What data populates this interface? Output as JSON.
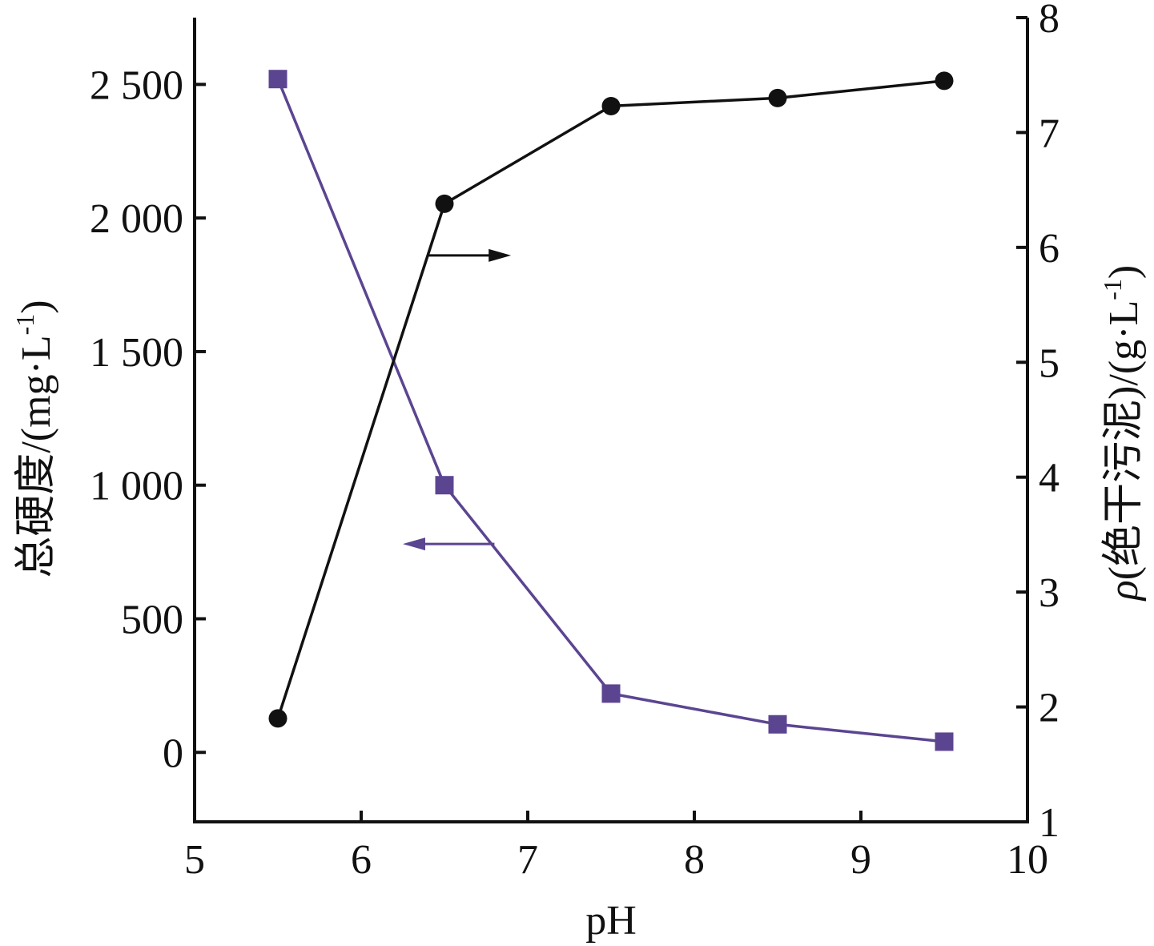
{
  "chart_data": {
    "type": "line",
    "xlabel": "pH",
    "ylabel_left": "总硬度/(mg·L",
    "ylabel_left_sup": "-1",
    "ylabel_left_close": ")",
    "ylabel_right_rho": "ρ",
    "ylabel_right": "(绝干污泥)/(g·L",
    "ylabel_right_sup": "-1",
    "ylabel_right_close": ")",
    "xlim": [
      5,
      10
    ],
    "ylim_left": [
      -260,
      2750
    ],
    "ylim_right": [
      1,
      8
    ],
    "x_ticks": [
      "5",
      "6",
      "7",
      "8",
      "9",
      "10"
    ],
    "y_left_ticks": [
      "0",
      "500",
      "1 000",
      "1 500",
      "2 000",
      "2 500"
    ],
    "y_left_tick_values": [
      0,
      500,
      1000,
      1500,
      2000,
      2500
    ],
    "y_right_ticks": [
      "1",
      "2",
      "3",
      "4",
      "5",
      "6",
      "7",
      "8"
    ],
    "y_right_tick_values": [
      1,
      2,
      3,
      4,
      5,
      6,
      7,
      8
    ],
    "series": [
      {
        "axis": "left",
        "marker": "square",
        "color": "#5B4591",
        "x": [
          5.5,
          6.5,
          7.5,
          8.5,
          9.5
        ],
        "y": [
          2520,
          1000,
          220,
          105,
          40
        ]
      },
      {
        "axis": "right",
        "marker": "circle",
        "color": "#111111",
        "x": [
          5.5,
          6.5,
          7.5,
          8.5,
          9.5
        ],
        "y": [
          1.9,
          6.38,
          7.23,
          7.3,
          7.45
        ]
      }
    ],
    "annotations": [
      {
        "type": "arrow",
        "direction": "right",
        "axis": "right",
        "x_from": 6.4,
        "x_to": 6.9,
        "y": 5.93,
        "color": "#111111"
      },
      {
        "type": "arrow",
        "direction": "left",
        "axis": "left",
        "x_from": 6.8,
        "x_to": 6.25,
        "y": 780,
        "color": "#5B4591"
      }
    ]
  }
}
